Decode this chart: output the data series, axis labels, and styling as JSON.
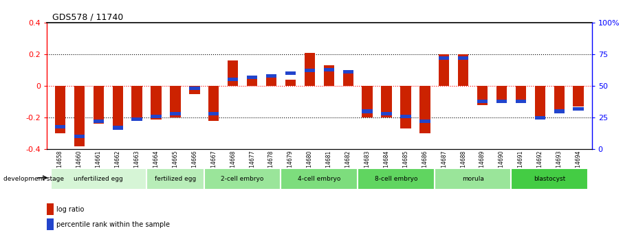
{
  "title": "GDS578 / 11740",
  "samples": [
    "GSM14658",
    "GSM14660",
    "GSM14661",
    "GSM14662",
    "GSM14663",
    "GSM14664",
    "GSM14665",
    "GSM14666",
    "GSM14667",
    "GSM14668",
    "GSM14677",
    "GSM14678",
    "GSM14679",
    "GSM14680",
    "GSM14681",
    "GSM14682",
    "GSM14683",
    "GSM14684",
    "GSM14685",
    "GSM14686",
    "GSM14687",
    "GSM14688",
    "GSM14689",
    "GSM14690",
    "GSM14691",
    "GSM14692",
    "GSM14693",
    "GSM14694"
  ],
  "log_ratio": [
    -0.3,
    -0.38,
    -0.24,
    -0.27,
    -0.22,
    -0.21,
    -0.2,
    -0.05,
    -0.22,
    0.16,
    0.05,
    0.06,
    0.04,
    0.21,
    0.13,
    0.1,
    -0.2,
    -0.2,
    -0.27,
    -0.3,
    0.2,
    0.2,
    -0.12,
    -0.1,
    -0.1,
    -0.2,
    -0.15,
    -0.13
  ],
  "percentile": [
    18,
    10,
    22,
    17,
    24,
    26,
    28,
    48,
    28,
    55,
    57,
    58,
    60,
    62,
    63,
    61,
    30,
    28,
    26,
    22,
    72,
    72,
    38,
    38,
    38,
    25,
    30,
    32
  ],
  "stages": [
    {
      "label": "unfertilized egg",
      "start": 0,
      "end": 5
    },
    {
      "label": "fertilized egg",
      "start": 5,
      "end": 8
    },
    {
      "label": "2-cell embryo",
      "start": 8,
      "end": 12
    },
    {
      "label": "4-cell embryo",
      "start": 12,
      "end": 16
    },
    {
      "label": "8-cell embryo",
      "start": 16,
      "end": 20
    },
    {
      "label": "morula",
      "start": 20,
      "end": 24
    },
    {
      "label": "blastocyst",
      "start": 24,
      "end": 28
    }
  ],
  "stage_colors": [
    "#d6f5d6",
    "#b8edb8",
    "#9ae59a",
    "#7ddd7d",
    "#60d560",
    "#9ae59a",
    "#44cc44"
  ],
  "bar_color_red": "#cc2200",
  "bar_color_blue": "#2244cc",
  "ylim": [
    -0.4,
    0.4
  ],
  "right_ylim": [
    0,
    100
  ],
  "right_yticks": [
    0,
    25,
    50,
    75,
    100
  ],
  "right_yticklabels": [
    "0",
    "25",
    "50",
    "75",
    "100%"
  ],
  "left_yticks": [
    -0.4,
    -0.2,
    0.0,
    0.2,
    0.4
  ],
  "dotted_lines": [
    -0.2,
    0.0,
    0.2
  ],
  "bar_width": 0.55
}
